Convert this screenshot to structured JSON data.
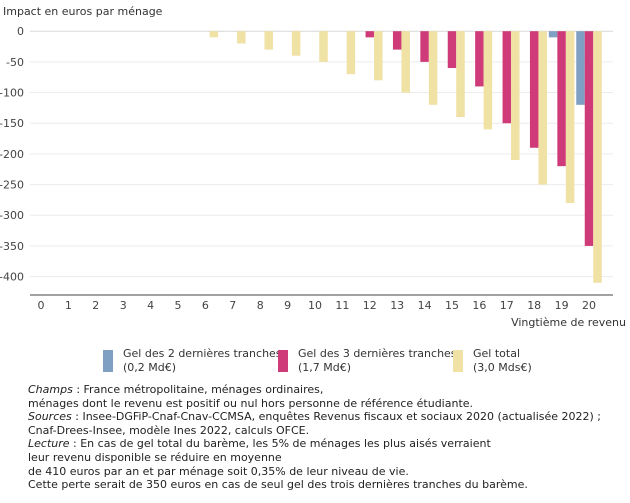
{
  "chart_data": {
    "type": "bar",
    "title": "",
    "ylabel": "Impact en euros par ménage",
    "xlabel": "Vingtième de revenu",
    "categories": [
      "0",
      "1",
      "2",
      "3",
      "4",
      "5",
      "6",
      "7",
      "8",
      "9",
      "10",
      "11",
      "12",
      "13",
      "14",
      "15",
      "16",
      "17",
      "18",
      "19",
      "20"
    ],
    "ylim": [
      -430,
      15
    ],
    "yticks": [
      0,
      -50,
      -100,
      -150,
      -200,
      -250,
      -300,
      -350,
      -400
    ],
    "ytick_labels": [
      "0",
      "-50",
      "-100",
      "-150",
      "-200",
      "-250",
      "-300",
      "-350",
      "-400"
    ],
    "grid": true,
    "legend_position": "bottom",
    "series": [
      {
        "name": "Gel des 2 dernières tranches",
        "amount": "(0,2 Md€)",
        "color": "#7f9fc3",
        "values": [
          0,
          0,
          0,
          0,
          0,
          0,
          0,
          0,
          0,
          0,
          0,
          0,
          0,
          0,
          0,
          0,
          0,
          0,
          0,
          -10,
          -120
        ]
      },
      {
        "name": "Gel des 3 dernières tranches",
        "amount": "(1,7 Md€)",
        "color": "#cf3a78",
        "values": [
          0,
          0,
          0,
          0,
          0,
          0,
          0,
          0,
          0,
          0,
          0,
          0,
          -10,
          -30,
          -50,
          -60,
          -90,
          -150,
          -190,
          -220,
          -350
        ]
      },
      {
        "name": "Gel total",
        "amount": "(3,0 Mds€)",
        "color": "#f0e1a4",
        "values": [
          0,
          0,
          0,
          0,
          0,
          0,
          -10,
          -20,
          -30,
          -40,
          -50,
          -70,
          -80,
          -100,
          -120,
          -140,
          -160,
          -210,
          -250,
          -280,
          -410
        ]
      }
    ]
  },
  "notes": {
    "champs_label": "Champs",
    "champs_text_1": " : France métropolitaine, ménages ordinaires,",
    "champs_text_2": "ménages dont le revenu est positif ou nul hors personne de référence étudiante.",
    "sources_label": "Sources",
    "sources_text_1": " : Insee-DGFiP-Cnaf-Cnav-CCMSA, enquêtes Revenus fiscaux et sociaux 2020 (actualisée 2022) ;",
    "sources_text_2": "Cnaf-Drees-Insee, modèle Ines 2022, calculs OFCE.",
    "lecture_label": "Lecture",
    "lecture_text_1": " : En cas de gel total du barème, les 5% de ménages les plus aisés verraient",
    "lecture_text_2": "leur revenu disponible se réduire en moyenne",
    "lecture_text_3": "de 410 euros par an et par ménage soit 0,35% de leur niveau de vie.",
    "lecture_text_4": "Cette perte serait de 350 euros en cas de seul gel des trois dernières tranches du barème."
  }
}
